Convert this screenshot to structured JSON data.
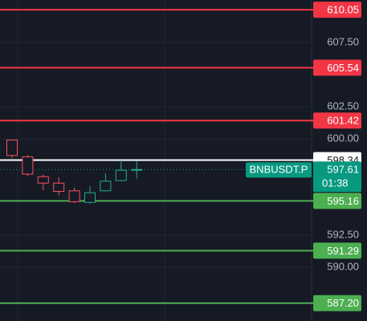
{
  "chart_data": {
    "type": "candlestick",
    "ylim": [
      585.81,
      610.81
    ],
    "yticks": [
      {
        "value": 607.5,
        "label": "607.50"
      },
      {
        "value": 602.5,
        "label": "602.50"
      },
      {
        "value": 600,
        "label": "600.00"
      },
      {
        "value": 592.5,
        "label": "592.50"
      },
      {
        "value": 590,
        "label": "590.00"
      }
    ],
    "grid": true,
    "up_color": "#22ab94",
    "down_color": "#f7525f",
    "open": [
      599.9,
      598.6,
      597.05,
      596.55,
      595.95,
      595.05,
      595.95,
      596.75,
      597.6
    ],
    "high": [
      599.9,
      598.75,
      597.2,
      597.0,
      596.2,
      596.3,
      597.3,
      598.35,
      598.3
    ],
    "low": [
      598.5,
      597.1,
      596.0,
      595.6,
      595.0,
      594.95,
      595.9,
      596.7,
      596.9
    ],
    "close": [
      598.7,
      597.25,
      596.55,
      595.9,
      595.1,
      595.8,
      596.7,
      597.55,
      597.61
    ],
    "levels": {
      "values": [
        610.05,
        605.54,
        601.42,
        598.34,
        595.16,
        591.29,
        587.2
      ],
      "value_labels": [
        "610.05",
        "605.54",
        "601.42",
        "598.34",
        "595.16",
        "591.29",
        "587.20"
      ],
      "colors": [
        "#f23645",
        "#f23645",
        "#f23645",
        "#ffffff",
        "#4caf50",
        "#4caf50",
        "#4caf50"
      ]
    },
    "current_price": {
      "symbol": "BNBUSDT.P",
      "value": 597.61,
      "label": "597.61",
      "countdown": "01:38",
      "color": "#089981"
    }
  }
}
